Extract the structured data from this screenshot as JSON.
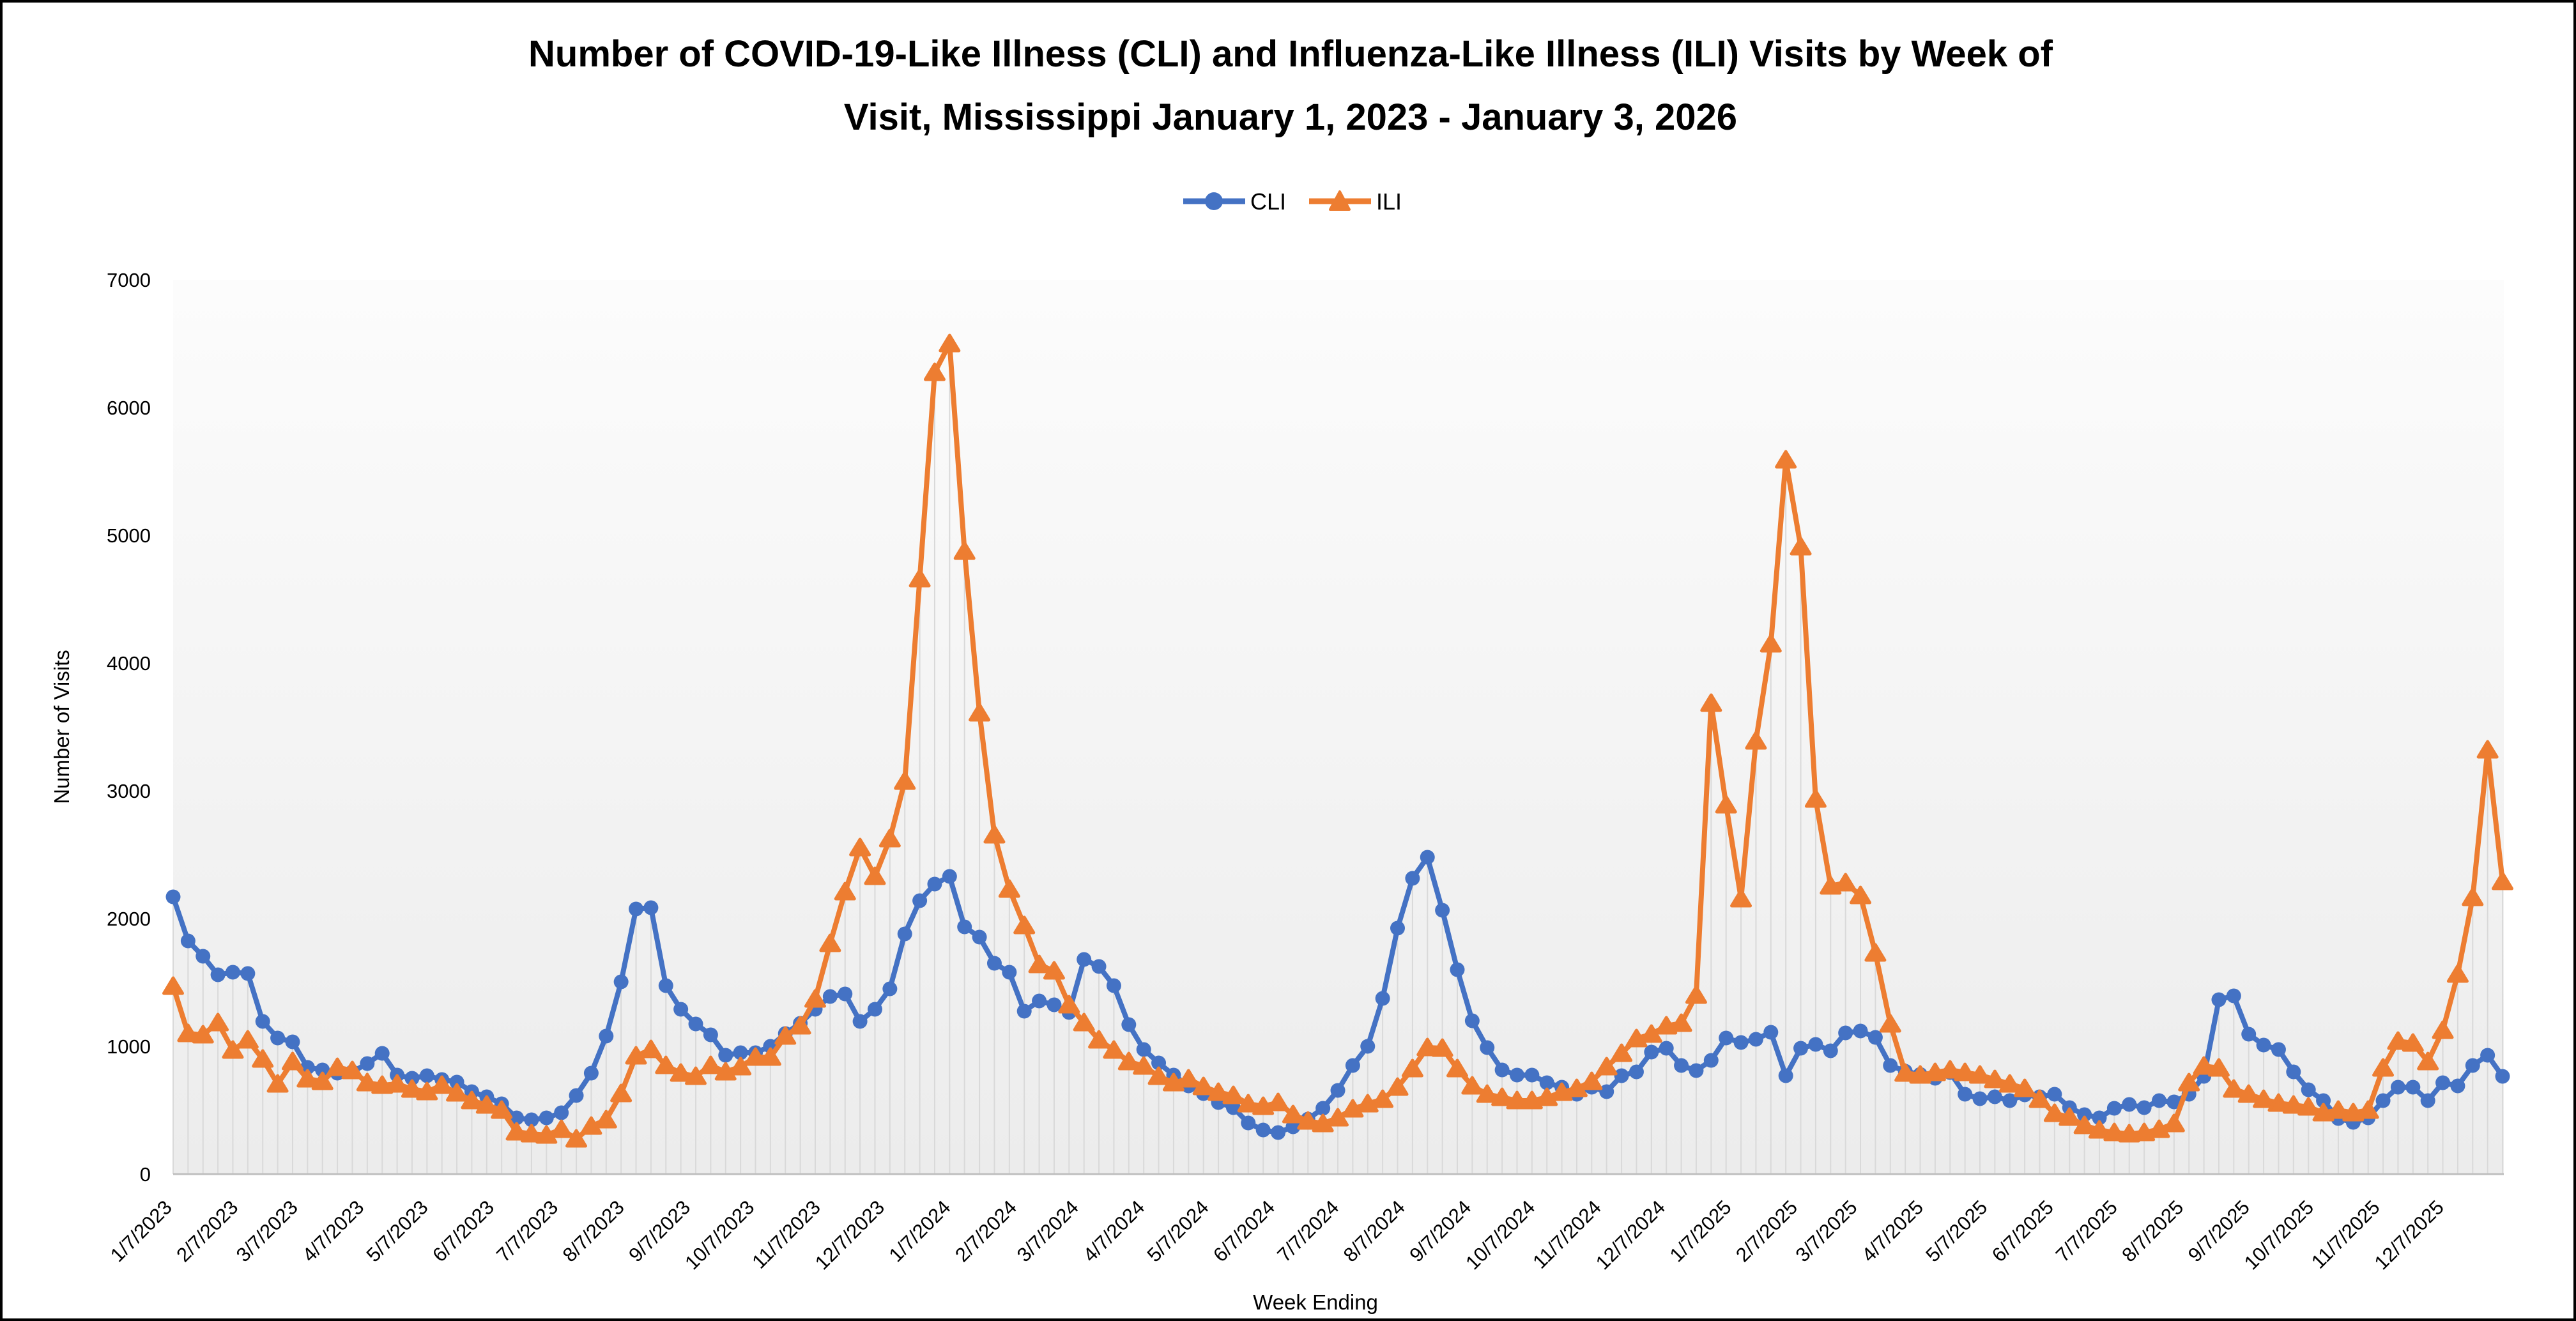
{
  "title": {
    "line1": "Number of COVID-19-Like Illness (CLI) and Influenza-Like Illness (ILI) Visits by Week of",
    "line2": "Visit, Mississippi January 1, 2023 - January 3, 2026"
  },
  "legend": {
    "items": [
      {
        "label": "CLI",
        "color": "#4472C4",
        "marker": "circle"
      },
      {
        "label": "ILI",
        "color": "#ED7D31",
        "marker": "triangle"
      }
    ]
  },
  "axes": {
    "y_title": "Number of Visits",
    "x_title": "Week Ending",
    "y_ticks": [
      0,
      1000,
      2000,
      3000,
      4000,
      5000,
      6000,
      7000
    ],
    "x_tick_labels": [
      "1/7/2023",
      "2/7/2023",
      "3/7/2023",
      "4/7/2023",
      "5/7/2023",
      "6/7/2023",
      "7/7/2023",
      "8/7/2023",
      "9/7/2023",
      "10/7/2023",
      "11/7/2023",
      "12/7/2023",
      "1/7/2024",
      "2/7/2024",
      "3/7/2024",
      "4/7/2024",
      "5/7/2024",
      "6/7/2024",
      "7/7/2024",
      "8/7/2024",
      "9/7/2024",
      "10/7/2024",
      "11/7/2024",
      "12/7/2024",
      "1/7/2025",
      "2/7/2025",
      "3/7/2025",
      "4/7/2025",
      "5/7/2025",
      "6/7/2025",
      "7/7/2025",
      "8/7/2025",
      "9/7/2025",
      "10/7/2025",
      "11/7/2025",
      "12/7/2025"
    ]
  },
  "colors": {
    "cli": "#4472C4",
    "ili": "#ED7D31",
    "drop_line": "#D9D9D9",
    "axis_line": "#BFBFBF",
    "plot_bg_top": "#FCFCFC",
    "plot_bg_bottom": "#ECECEC",
    "text": "#000000"
  },
  "chart_data": {
    "type": "line",
    "title": "Number of COVID-19-Like Illness (CLI) and Influenza-Like Illness (ILI) Visits by Week of Visit, Mississippi January 1, 2023 - January 3, 2026",
    "xlabel": "Week Ending",
    "ylabel": "Number of Visits",
    "ylim": [
      0,
      7000
    ],
    "grid": "weekly vertical drop lines, no horizontal gridlines",
    "legend_position": "top-center",
    "x_start_week_ending": "1/7/2023",
    "x_end_week_ending": "1/3/2026",
    "x_interval_days": 7,
    "n_weeks": 157,
    "x_tick_labels": [
      "1/7/2023",
      "2/7/2023",
      "3/7/2023",
      "4/7/2023",
      "5/7/2023",
      "6/7/2023",
      "7/7/2023",
      "8/7/2023",
      "9/7/2023",
      "10/7/2023",
      "11/7/2023",
      "12/7/2023",
      "1/7/2024",
      "2/7/2024",
      "3/7/2024",
      "4/7/2024",
      "5/7/2024",
      "6/7/2024",
      "7/7/2024",
      "8/7/2024",
      "9/7/2024",
      "10/7/2024",
      "11/7/2024",
      "12/7/2024",
      "1/7/2025",
      "2/7/2025",
      "3/7/2025",
      "4/7/2025",
      "5/7/2025",
      "6/7/2025",
      "7/7/2025",
      "8/7/2025",
      "9/7/2025",
      "10/7/2025",
      "11/7/2025",
      "12/7/2025"
    ],
    "series": [
      {
        "name": "CLI",
        "color": "#4472C4",
        "marker": "circle",
        "values": [
          2170,
          1825,
          1705,
          1560,
          1580,
          1570,
          1195,
          1065,
          1035,
          835,
          815,
          790,
          800,
          865,
          945,
          775,
          750,
          770,
          740,
          720,
          645,
          605,
          550,
          440,
          425,
          440,
          480,
          615,
          790,
          1080,
          1505,
          2075,
          2085,
          1475,
          1290,
          1175,
          1090,
          930,
          950,
          950,
          1000,
          1100,
          1180,
          1290,
          1390,
          1410,
          1195,
          1290,
          1450,
          1880,
          2140,
          2270,
          2330,
          1935,
          1855,
          1650,
          1580,
          1275,
          1355,
          1325,
          1265,
          1680,
          1625,
          1475,
          1170,
          975,
          870,
          775,
          690,
          630,
          560,
          520,
          400,
          345,
          325,
          370,
          430,
          515,
          655,
          850,
          1000,
          1375,
          1925,
          2315,
          2480,
          2065,
          1600,
          1200,
          990,
          815,
          775,
          775,
          715,
          680,
          625,
          680,
          645,
          770,
          800,
          955,
          985,
          850,
          810,
          890,
          1065,
          1030,
          1055,
          1110,
          770,
          985,
          1015,
          965,
          1105,
          1120,
          1070,
          850,
          805,
          780,
          750,
          795,
          625,
          590,
          605,
          575,
          620,
          605,
          625,
          520,
          465,
          440,
          515,
          545,
          520,
          575,
          565,
          625,
          765,
          1365,
          1395,
          1095,
          1010,
          975,
          800,
          660,
          575,
          435,
          405,
          440,
          575,
          680,
          680,
          575,
          715,
          690,
          850,
          930,
          765
        ]
      },
      {
        "name": "ILI",
        "color": "#ED7D31",
        "marker": "triangle",
        "values": [
          1470,
          1100,
          1090,
          1185,
          970,
          1050,
          900,
          705,
          880,
          745,
          725,
          835,
          810,
          715,
          695,
          705,
          665,
          645,
          695,
          635,
          575,
          540,
          500,
          330,
          315,
          305,
          350,
          275,
          375,
          425,
          630,
          925,
          975,
          850,
          790,
          765,
          850,
          800,
          840,
          915,
          915,
          1080,
          1160,
          1370,
          1805,
          2210,
          2555,
          2330,
          2625,
          3075,
          4660,
          6275,
          6500,
          4875,
          3610,
          2655,
          2230,
          1945,
          1640,
          1590,
          1325,
          1185,
          1050,
          970,
          880,
          845,
          765,
          715,
          745,
          685,
          640,
          615,
          550,
          530,
          560,
          465,
          415,
          395,
          440,
          510,
          550,
          585,
          680,
          825,
          990,
          985,
          825,
          690,
          625,
          600,
          575,
          575,
          600,
          640,
          670,
          725,
          840,
          945,
          1060,
          1095,
          1160,
          1180,
          1400,
          3685,
          2890,
          2155,
          3390,
          4150,
          5590,
          4910,
          2935,
          2255,
          2280,
          2180,
          1730,
          1175,
          790,
          775,
          795,
          815,
          795,
          775,
          740,
          705,
          670,
          585,
          475,
          445,
          380,
          345,
          325,
          315,
          325,
          350,
          395,
          715,
          845,
          830,
          665,
          625,
          585,
          555,
          540,
          525,
          480,
          500,
          480,
          500,
          830,
          1040,
          1025,
          880,
          1125,
          1565,
          2165,
          3320,
          2290
        ]
      }
    ]
  }
}
